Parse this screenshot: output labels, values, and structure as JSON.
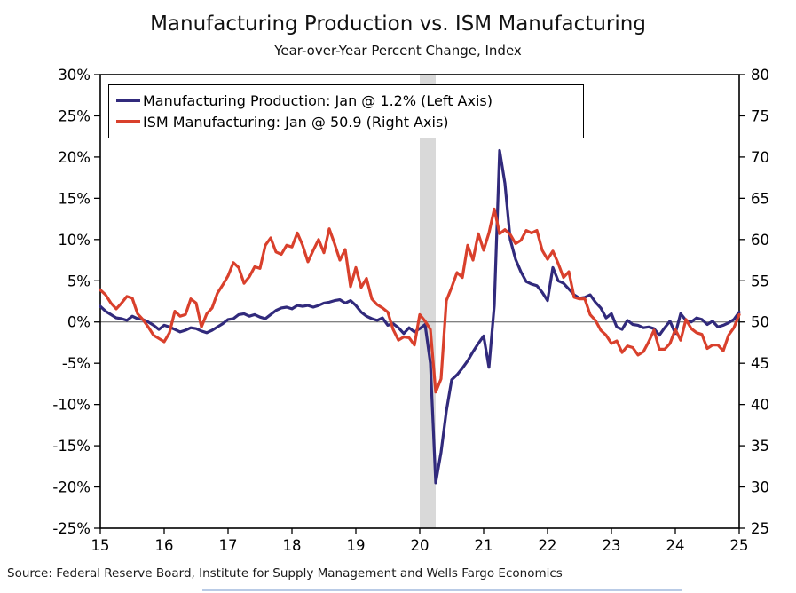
{
  "header": {
    "title": "Manufacturing Production vs. ISM Manufacturing",
    "subtitle": "Year-over-Year Percent Change, Index"
  },
  "legend": {
    "items": [
      {
        "label": "Manufacturing Production: Jan @ 1.2% (Left Axis)",
        "color": "#312a7c"
      },
      {
        "label": "ISM Manufacturing: Jan @ 50.9 (Right Axis)",
        "color": "#d9402c"
      }
    ]
  },
  "source_note": "Source: Federal Reserve Board, Institute for Supply Management and Wells Fargo Economics",
  "chart_data": {
    "type": "line",
    "title": "Manufacturing Production vs. ISM Manufacturing",
    "subtitle": "Year-over-Year Percent Change, Index",
    "x": {
      "start": "2015-01",
      "end": "2025-01",
      "frequency": "monthly"
    },
    "x_tick_labels": [
      "15",
      "16",
      "17",
      "18",
      "19",
      "20",
      "21",
      "22",
      "23",
      "24",
      "25"
    ],
    "left_axis": {
      "label": "Year-over-Year Percent Change",
      "min": -25,
      "max": 30,
      "tick_step": 5,
      "ticks": [
        "30%",
        "25%",
        "20%",
        "15%",
        "10%",
        "5%",
        "0%",
        "-5%",
        "-10%",
        "-15%",
        "-20%",
        "-25%"
      ]
    },
    "right_axis": {
      "label": "Index",
      "min": 25,
      "max": 80,
      "tick_step": 5,
      "ticks": [
        "80",
        "75",
        "70",
        "65",
        "60",
        "55",
        "50",
        "45",
        "40",
        "35",
        "30",
        "25"
      ]
    },
    "zero_reference_line": 0,
    "recession_band": {
      "start": "2020-01",
      "end": "2020-04",
      "color": "#d9d9d9"
    },
    "grid": false,
    "legend_position": "top-left-inside",
    "series": [
      {
        "name": "Manufacturing Production",
        "axis": "left",
        "color": "#312a7c",
        "last_point_label": "Jan @ 1.2%",
        "values": [
          1.9,
          1.3,
          0.9,
          0.5,
          0.4,
          0.2,
          0.7,
          0.4,
          0.3,
          0.0,
          -0.4,
          -0.9,
          -0.4,
          -0.6,
          -0.9,
          -1.2,
          -1.0,
          -0.7,
          -0.8,
          -1.1,
          -1.3,
          -1.0,
          -0.6,
          -0.2,
          0.3,
          0.4,
          0.9,
          1.0,
          0.7,
          0.9,
          0.6,
          0.4,
          0.9,
          1.4,
          1.7,
          1.8,
          1.6,
          2.0,
          1.9,
          2.0,
          1.8,
          2.0,
          2.3,
          2.4,
          2.6,
          2.7,
          2.3,
          2.6,
          2.0,
          1.2,
          0.7,
          0.4,
          0.2,
          0.5,
          -0.4,
          -0.2,
          -0.7,
          -1.4,
          -0.7,
          -1.2,
          -0.8,
          -0.3,
          -5.0,
          -19.5,
          -15.8,
          -10.8,
          -7.0,
          -6.4,
          -5.6,
          -4.7,
          -3.6,
          -2.6,
          -1.7,
          -5.5,
          2.0,
          20.8,
          16.8,
          10.0,
          7.6,
          6.1,
          4.9,
          4.6,
          4.4,
          3.6,
          2.6,
          6.6,
          5.0,
          4.7,
          4.0,
          3.3,
          2.9,
          3.0,
          3.3,
          2.4,
          1.7,
          0.5,
          1.0,
          -0.6,
          -0.9,
          0.2,
          -0.3,
          -0.4,
          -0.7,
          -0.6,
          -0.8,
          -1.6,
          -0.7,
          0.1,
          -1.4,
          1.0,
          0.2,
          0.0,
          0.5,
          0.3,
          -0.3,
          0.1,
          -0.6,
          -0.4,
          -0.1,
          0.3,
          1.2
        ]
      },
      {
        "name": "ISM Manufacturing",
        "axis": "right",
        "color": "#d9402c",
        "last_point_label": "Jan @ 50.9",
        "values": [
          53.9,
          53.3,
          52.3,
          51.6,
          52.3,
          53.1,
          52.9,
          51.0,
          50.3,
          49.4,
          48.4,
          48.0,
          47.6,
          48.7,
          51.3,
          50.7,
          50.9,
          52.8,
          52.3,
          49.4,
          51.0,
          51.7,
          53.5,
          54.5,
          55.6,
          57.2,
          56.6,
          54.7,
          55.5,
          56.7,
          56.5,
          59.3,
          60.2,
          58.5,
          58.2,
          59.3,
          59.1,
          60.8,
          59.3,
          57.3,
          58.7,
          60.0,
          58.4,
          61.3,
          59.5,
          57.5,
          58.8,
          54.3,
          56.6,
          54.2,
          55.3,
          52.8,
          52.1,
          51.7,
          51.2,
          49.1,
          47.8,
          48.2,
          48.1,
          47.2,
          50.9,
          50.1,
          49.1,
          41.5,
          43.1,
          52.6,
          54.2,
          56.0,
          55.4,
          59.3,
          57.5,
          60.7,
          58.7,
          60.8,
          63.7,
          60.7,
          61.2,
          60.6,
          59.5,
          59.9,
          61.1,
          60.8,
          61.1,
          58.7,
          57.6,
          58.6,
          57.1,
          55.4,
          56.1,
          53.0,
          52.8,
          52.8,
          50.9,
          50.2,
          49.0,
          48.4,
          47.4,
          47.7,
          46.3,
          47.1,
          46.9,
          46.0,
          46.4,
          47.6,
          49.0,
          46.7,
          46.7,
          47.4,
          49.1,
          47.8,
          50.3,
          49.2,
          48.7,
          48.5,
          46.8,
          47.2,
          47.2,
          46.5,
          48.4,
          49.3,
          50.9
        ]
      }
    ]
  }
}
